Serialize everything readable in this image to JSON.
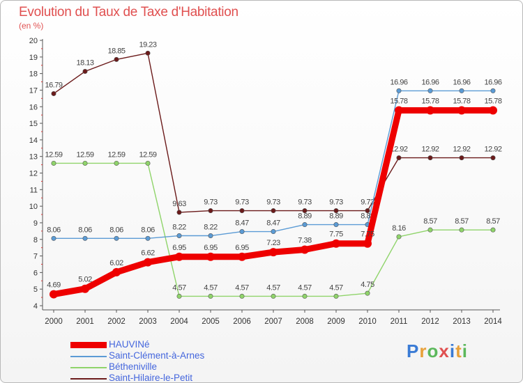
{
  "chart": {
    "title": "Evolution du Taux de Taxe d'Habitation",
    "subtitle": "(en %)"
  },
  "brand": {
    "text": "Proxiti",
    "colors": [
      "#3a7bd5",
      "#e8a13a",
      "#5cb85c",
      "#e05050",
      "#3a7bd5",
      "#e8a13a",
      "#5cb85c"
    ]
  },
  "chart_data": {
    "type": "line",
    "title": "Evolution du Taux de Taxe d'Habitation",
    "subtitle": "(en %)",
    "xlabel": "",
    "ylabel": "",
    "ylim": [
      4,
      20
    ],
    "grid": false,
    "legend_position": "bottom-left",
    "x": [
      "2000",
      "2001",
      "2002",
      "2003",
      "2004",
      "2005",
      "2006",
      "2007",
      "2008",
      "2009",
      "2010",
      "2011",
      "2012",
      "2013",
      "2014"
    ],
    "y_ticks": [
      "4",
      "5",
      "6",
      "7",
      "8",
      "9",
      "10",
      "11",
      "12",
      "13",
      "14",
      "15",
      "16",
      "17",
      "18",
      "19",
      "20"
    ],
    "series": [
      {
        "name": "Saint-Hilaire-le-Petit",
        "color": "#6b1a1a",
        "values": [
          16.79,
          18.13,
          18.85,
          19.23,
          9.63,
          9.73,
          9.73,
          9.73,
          9.73,
          9.73,
          9.73,
          12.92,
          12.92,
          12.92,
          12.92
        ],
        "labels": [
          "16.79",
          "18.13",
          "18.85",
          "19.23",
          "9.63",
          "9.73",
          "9.73",
          "9.73",
          "9.73",
          "9.73",
          "9.73",
          "12.92",
          "12.92",
          "12.92",
          "12.92"
        ]
      },
      {
        "name": "Bétheniville",
        "color": "#8fd46a",
        "values": [
          12.59,
          12.59,
          12.59,
          12.59,
          4.57,
          4.57,
          4.57,
          4.57,
          4.57,
          4.57,
          4.75,
          8.16,
          8.57,
          8.57,
          8.57
        ],
        "labels": [
          "12.59",
          "12.59",
          "12.59",
          "12.59",
          "4.57",
          "4.57",
          "4.57",
          "4.57",
          "4.57",
          "4.57",
          "4.75",
          "8.16",
          "8.57",
          "8.57",
          "8.57"
        ]
      },
      {
        "name": "Saint-Clément-à-Arnes",
        "color": "#5b9bd5",
        "values": [
          8.06,
          8.06,
          8.06,
          8.06,
          8.22,
          8.22,
          8.47,
          8.47,
          8.89,
          8.89,
          8.89,
          16.96,
          16.96,
          16.96,
          16.96
        ],
        "labels": [
          "8.06",
          "8.06",
          "8.06",
          "8.06",
          "8.22",
          "8.22",
          "8.47",
          "8.47",
          "8.89",
          "8.89",
          "8.89",
          "16.96",
          "16.96",
          "16.96",
          "16.96"
        ]
      },
      {
        "name": "HAUVINé",
        "color": "#ee0000",
        "values": [
          4.69,
          5.02,
          6.02,
          6.62,
          6.95,
          6.95,
          6.95,
          7.23,
          7.38,
          7.75,
          7.75,
          15.78,
          15.78,
          15.78,
          15.78
        ],
        "labels": [
          "4.69",
          "5.02",
          "6.02",
          "6.62",
          "6.95",
          "6.95",
          "6.95",
          "7.23",
          "7.38",
          "7.75",
          "7.75",
          "15.78",
          "15.78",
          "15.78",
          "15.78"
        ]
      }
    ]
  },
  "legend": [
    {
      "name": "HAUVINé",
      "color": "#ee0000",
      "thickness": "thick"
    },
    {
      "name": "Saint-Clément-à-Arnes",
      "color": "#5b9bd5",
      "thickness": "thin"
    },
    {
      "name": "Bétheniville",
      "color": "#8fd46a",
      "thickness": "thin"
    },
    {
      "name": "Saint-Hilaire-le-Petit",
      "color": "#6b1a1a",
      "thickness": "thin"
    }
  ]
}
